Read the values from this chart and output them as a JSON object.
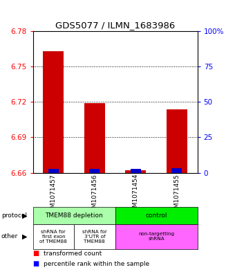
{
  "title": "GDS5077 / ILMN_1683986",
  "samples": [
    "GSM1071457",
    "GSM1071456",
    "GSM1071454",
    "GSM1071455"
  ],
  "red_values": [
    6.763,
    6.719,
    6.662,
    6.714
  ],
  "blue_values": [
    6.662,
    6.662,
    6.662,
    6.663
  ],
  "ylim": [
    6.66,
    6.78
  ],
  "yticks": [
    6.78,
    6.75,
    6.72,
    6.69,
    6.66
  ],
  "right_yticks": [
    100,
    75,
    50,
    25,
    0
  ],
  "right_ylim": [
    0,
    100
  ],
  "protocol_labels": [
    "TMEM88 depletion",
    "control"
  ],
  "protocol_colors": [
    "#aaffaa",
    "#00ee00"
  ],
  "other_labels": [
    "shRNA for\nfirst exon\nof TMEM88",
    "shRNA for\n3'UTR of\nTMEM88",
    "non-targetting\nshRNA"
  ],
  "other_colors": [
    "#ffffff",
    "#ffffff",
    "#ff66ff"
  ],
  "bar_color": "#cc0000",
  "blue_bar_color": "#0000cc",
  "bar_width": 0.5,
  "legend_red": "transformed count",
  "legend_blue": "percentile rank within the sample"
}
